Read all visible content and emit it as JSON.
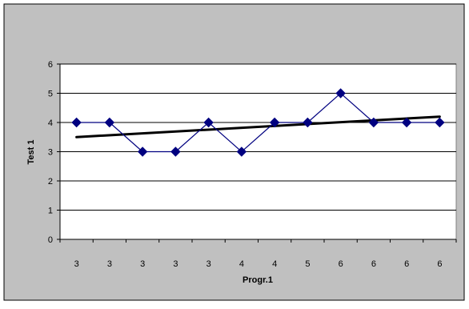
{
  "chart_data": {
    "type": "line",
    "title": "",
    "xlabel": "Progr.1",
    "ylabel": "Test 1",
    "categories": [
      "3",
      "3",
      "3",
      "3",
      "3",
      "4",
      "4",
      "5",
      "6",
      "6",
      "6",
      "6"
    ],
    "series": [
      {
        "values": [
          4,
          4,
          3,
          3,
          4,
          3,
          4,
          4,
          5,
          4,
          4,
          4
        ],
        "color": "#000080",
        "marker": "diamond"
      }
    ],
    "trendline": {
      "type": "linear",
      "start_value": 3.5,
      "end_value": 4.2,
      "color": "#000000"
    },
    "ylim": [
      0,
      6
    ],
    "yticks": [
      0,
      1,
      2,
      3,
      4,
      5,
      6
    ],
    "grid": true,
    "legend": "none",
    "colors": {
      "chart_area": "#c0c0c0",
      "plot_area": "#ffffff",
      "gridline": "#000000"
    }
  }
}
